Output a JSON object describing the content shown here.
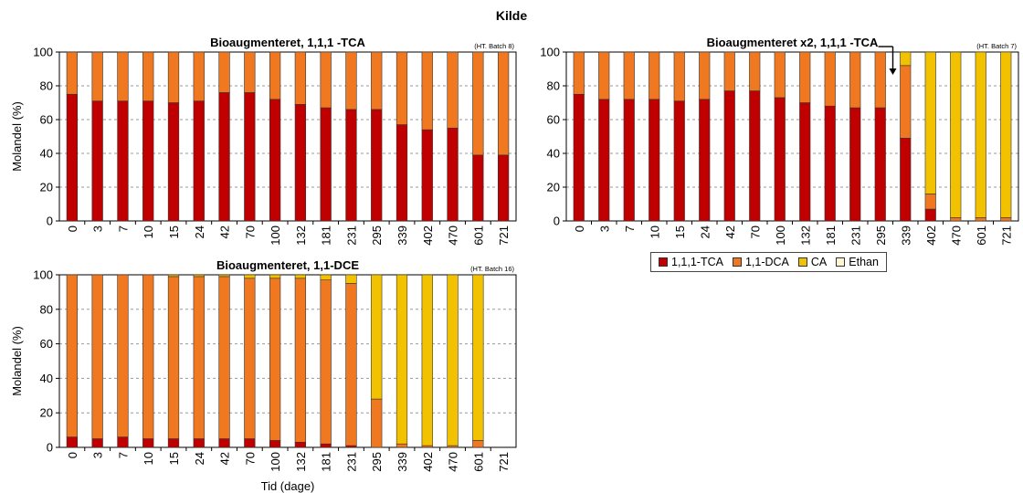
{
  "page_title": "Kilde",
  "colors": {
    "1,1,1-TCA": "#c00000",
    "1,1-DCA": "#f07820",
    "CA": "#f2c200",
    "Ethan": "#fff6d5"
  },
  "legend": {
    "items": [
      {
        "label": "1,1,1-TCA",
        "color": "#c00000"
      },
      {
        "label": "1,1-DCA",
        "color": "#f07820"
      },
      {
        "label": "CA",
        "color": "#f2c200"
      },
      {
        "label": "Ethan",
        "color": "#fff6d5"
      }
    ]
  },
  "chart_data": [
    {
      "type": "bar",
      "stacked": true,
      "title": "Bioaugmenteret, 1,1,1 -TCA",
      "batch_note": "(HT. Batch 8)",
      "xlabel": "",
      "ylabel": "Molandel (%)",
      "ylim": [
        0,
        100
      ],
      "yticks": [
        0,
        20,
        40,
        60,
        80,
        100
      ],
      "grid": "horizontal dashed",
      "categories": [
        "0",
        "3",
        "7",
        "10",
        "15",
        "24",
        "42",
        "70",
        "100",
        "132",
        "181",
        "231",
        "295",
        "339",
        "402",
        "470",
        "601",
        "721"
      ],
      "series": [
        {
          "name": "1,1,1-TCA",
          "values": [
            75,
            71,
            71,
            71,
            70,
            71,
            76,
            76,
            72,
            69,
            67,
            66,
            66,
            57,
            54,
            55,
            39,
            39
          ]
        },
        {
          "name": "1,1-DCA",
          "values": [
            25,
            29,
            29,
            29,
            30,
            29,
            24,
            24,
            28,
            31,
            33,
            34,
            34,
            43,
            46,
            45,
            61,
            61
          ]
        },
        {
          "name": "CA",
          "values": [
            0,
            0,
            0,
            0,
            0,
            0,
            0,
            0,
            0,
            0,
            0,
            0,
            0,
            0,
            0,
            0,
            0,
            0
          ]
        },
        {
          "name": "Ethan",
          "values": [
            0,
            0,
            0,
            0,
            0,
            0,
            0,
            0,
            0,
            0,
            0,
            0,
            0,
            0,
            0,
            0,
            0,
            0
          ]
        }
      ]
    },
    {
      "type": "bar",
      "stacked": true,
      "title": "Bioaugmenteret x2, 1,1,1 -TCA",
      "batch_note": "(HT. Batch 7)",
      "xlabel": "Tid (dage)",
      "ylabel": "",
      "ylim": [
        0,
        100
      ],
      "yticks": [
        0,
        20,
        40,
        60,
        80,
        100
      ],
      "grid": "horizontal dashed",
      "categories": [
        "0",
        "3",
        "7",
        "10",
        "15",
        "24",
        "42",
        "70",
        "100",
        "132",
        "181",
        "231",
        "295",
        "339",
        "402",
        "470",
        "601",
        "721"
      ],
      "series": [
        {
          "name": "1,1,1-TCA",
          "values": [
            75,
            72,
            72,
            72,
            71,
            72,
            77,
            77,
            73,
            70,
            68,
            67,
            67,
            49,
            7,
            0,
            0,
            0
          ]
        },
        {
          "name": "1,1-DCA",
          "values": [
            25,
            28,
            28,
            28,
            29,
            28,
            23,
            23,
            27,
            30,
            32,
            33,
            33,
            43,
            9,
            2,
            2,
            2
          ]
        },
        {
          "name": "CA",
          "values": [
            0,
            0,
            0,
            0,
            0,
            0,
            0,
            0,
            0,
            0,
            0,
            0,
            0,
            8,
            84,
            98,
            98,
            98
          ]
        },
        {
          "name": "Ethan",
          "values": [
            0,
            0,
            0,
            0,
            0,
            0,
            0,
            0,
            0,
            0,
            0,
            0,
            0,
            0,
            0,
            0,
            0,
            0
          ]
        }
      ],
      "annotation": {
        "type": "arrow",
        "at_category_between": [
          "295",
          "339"
        ]
      }
    },
    {
      "type": "bar",
      "stacked": true,
      "title": "Bioaugmenteret, 1,1-DCE",
      "batch_note": "(HT. Batch 16)",
      "xlabel": "Tid (dage)",
      "ylabel": "Molandel (%)",
      "ylim": [
        0,
        100
      ],
      "yticks": [
        0,
        20,
        40,
        60,
        80,
        100
      ],
      "grid": "horizontal dashed",
      "categories": [
        "0",
        "3",
        "7",
        "10",
        "15",
        "24",
        "42",
        "70",
        "100",
        "132",
        "181",
        "231",
        "295",
        "339",
        "402",
        "470",
        "601",
        "721"
      ],
      "series": [
        {
          "name": "1,1,1-TCA",
          "values": [
            6,
            5,
            6,
            5,
            5,
            5,
            5,
            5,
            4,
            3,
            2,
            1,
            0,
            0,
            0,
            0,
            0,
            0
          ]
        },
        {
          "name": "1,1-DCA",
          "values": [
            94,
            95,
            94,
            95,
            94,
            94,
            94,
            93,
            94,
            95,
            95,
            94,
            28,
            2,
            1,
            1,
            4,
            0
          ]
        },
        {
          "name": "CA",
          "values": [
            0,
            0,
            0,
            0,
            1,
            1,
            1,
            2,
            2,
            2,
            3,
            5,
            72,
            98,
            99,
            99,
            96,
            0
          ]
        },
        {
          "name": "Ethan",
          "values": [
            0,
            0,
            0,
            0,
            0,
            0,
            0,
            0,
            0,
            0,
            0,
            0,
            0,
            0,
            0,
            0,
            0,
            0
          ]
        }
      ]
    }
  ]
}
